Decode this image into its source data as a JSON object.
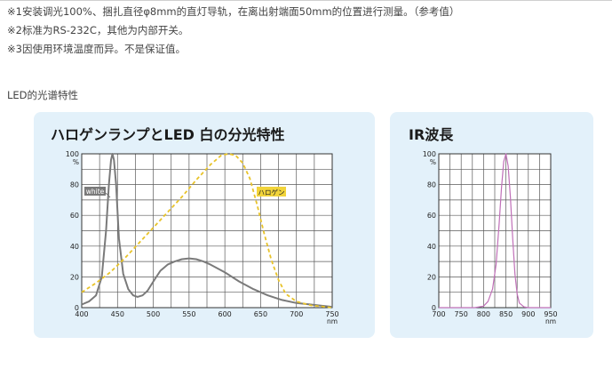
{
  "notes": [
    "※1安装调光100%、捆扎直径φ8mm的直灯导轨，在离出射端面50mm的位置进行测量。（参考值）",
    "※2标准为RS-232C，其他为内部开关。",
    "※3因使用环境温度而异。不是保证值。"
  ],
  "section_label": "LED的光谱特性",
  "colors": {
    "panel_bg": "#e3f1fa",
    "white_led": "#7a7a7a",
    "halogen": "#e8c32a",
    "ir": "#c070b8",
    "grid": "#555555"
  },
  "charts": {
    "spectrum": {
      "title": "ハロゲンランプとLED 白の分光特性",
      "ylabel_unit": "%",
      "xlabel_unit": "nm",
      "x_ticks": [
        "400",
        "450",
        "500",
        "550",
        "600",
        "650",
        "700",
        "750"
      ],
      "y_ticks": [
        "0",
        "20",
        "40",
        "60",
        "80",
        "100"
      ],
      "legend": {
        "white": "white",
        "halogen": "ハロゲン"
      }
    },
    "ir": {
      "title": "IR波長",
      "ylabel_unit": "%",
      "xlabel_unit": "nm",
      "x_ticks": [
        "700",
        "750",
        "800",
        "850",
        "900",
        "950"
      ],
      "y_ticks": [
        "0",
        "20",
        "40",
        "60",
        "80",
        "100"
      ]
    }
  },
  "chart_data": [
    {
      "type": "line",
      "title": "ハロゲンランプとLED 白の分光特性",
      "xlabel": "nm",
      "ylabel": "%",
      "xlim": [
        400,
        750
      ],
      "ylim": [
        0,
        100
      ],
      "grid": true,
      "series": [
        {
          "name": "white",
          "color": "#7a7a7a",
          "style": "solid",
          "x": [
            400,
            410,
            420,
            428,
            434,
            438,
            441,
            443,
            445,
            448,
            452,
            458,
            465,
            472,
            478,
            485,
            492,
            500,
            510,
            520,
            530,
            540,
            550,
            560,
            570,
            580,
            600,
            620,
            640,
            660,
            680,
            700,
            720,
            740,
            750
          ],
          "y": [
            2,
            4,
            8,
            20,
            50,
            80,
            96,
            100,
            96,
            80,
            45,
            22,
            12,
            8,
            7,
            8,
            11,
            17,
            24,
            28,
            30,
            31.5,
            32,
            31.5,
            30,
            28,
            23,
            17,
            12,
            8,
            5,
            3,
            2,
            1,
            0.5
          ]
        },
        {
          "name": "ハロゲン",
          "color": "#e8c32a",
          "style": "dashed",
          "x": [
            400,
            420,
            440,
            460,
            480,
            500,
            520,
            540,
            560,
            580,
            595,
            605,
            615,
            625,
            635,
            645,
            655,
            665,
            675,
            685,
            700,
            720,
            740,
            750
          ],
          "y": [
            10,
            16,
            23,
            32,
            42,
            52,
            62,
            72,
            83,
            93,
            99,
            100,
            99,
            94,
            84,
            67,
            48,
            31,
            18,
            9,
            4,
            1.5,
            0.5,
            0
          ]
        }
      ]
    },
    {
      "type": "line",
      "title": "IR波長",
      "xlabel": "nm",
      "ylabel": "%",
      "xlim": [
        700,
        950
      ],
      "ylim": [
        0,
        100
      ],
      "grid": true,
      "series": [
        {
          "name": "",
          "color": "#c070b8",
          "style": "solid",
          "x": [
            700,
            780,
            800,
            810,
            820,
            828,
            835,
            840,
            845,
            850,
            855,
            860,
            865,
            870,
            875,
            880,
            890,
            900,
            950
          ],
          "y": [
            0,
            0,
            1,
            4,
            12,
            28,
            55,
            78,
            95,
            100,
            92,
            72,
            45,
            22,
            9,
            3,
            0.5,
            0,
            0
          ]
        }
      ]
    }
  ]
}
